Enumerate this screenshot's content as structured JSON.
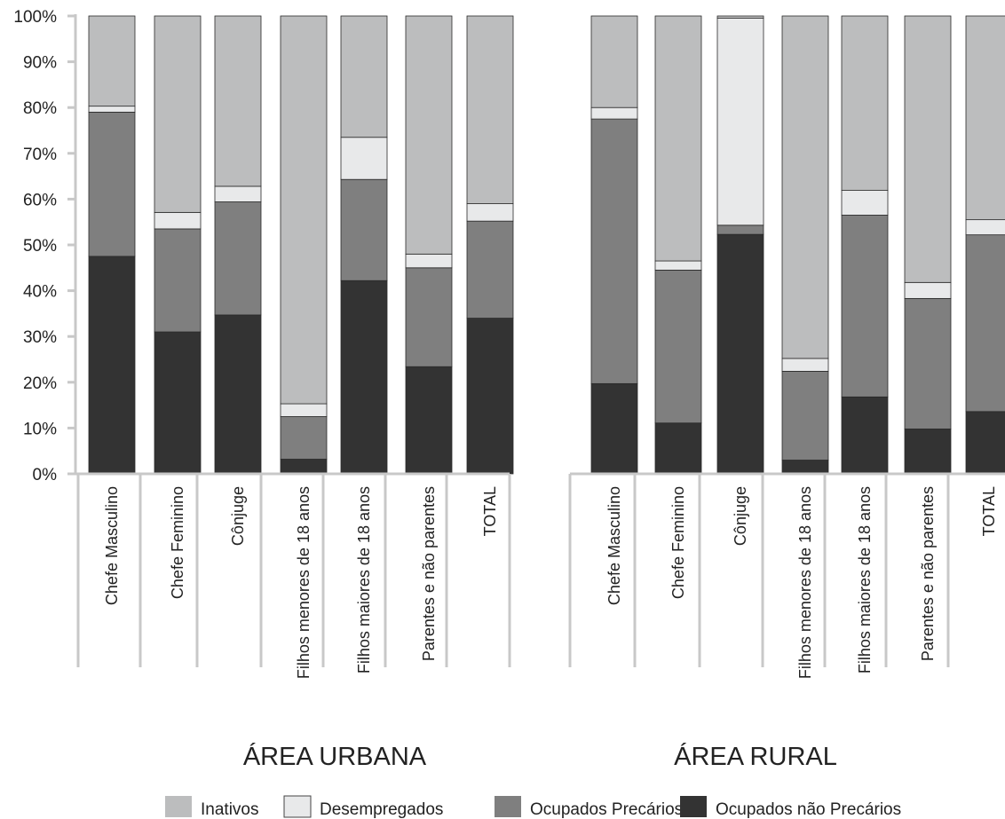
{
  "chart_data": {
    "type": "bar",
    "stacked": true,
    "percent_scale": true,
    "ylim": [
      0,
      100
    ],
    "yticks": [
      "0%",
      "10%",
      "20%",
      "30%",
      "40%",
      "50%",
      "60%",
      "70%",
      "80%",
      "90%",
      "100%"
    ],
    "colors": {
      "Ocupados não Precários": "#333333",
      "Ocupados Precários": "#7f7f7f",
      "Desempregados": "#e8e9ea",
      "Inativos": "#bcbdbe"
    },
    "legend": {
      "position": "bottom",
      "entries": [
        "Inativos",
        "Desempregados",
        "Ocupados Precários",
        "Ocupados não Precários"
      ]
    },
    "groups": [
      {
        "label": "ÁREA URBANA",
        "categories": [
          "Chefe Masculino",
          "Chefe Feminino",
          "Cônjuge",
          "Filhos menores de 18 anos",
          "Filhos maiores de 18 anos",
          "Parentes e não parentes",
          "TOTAL"
        ],
        "series": [
          {
            "name": "Ocupados não Precários",
            "values": [
              47.5,
              31,
              34.7,
              3.2,
              42.2,
              23.4,
              34
            ]
          },
          {
            "name": "Ocupados Precários",
            "values": [
              31.5,
              22.5,
              24.7,
              9.3,
              22.1,
              21.6,
              21.2
            ]
          },
          {
            "name": "Desempregados",
            "values": [
              1.3,
              3.6,
              3.4,
              2.8,
              9.2,
              3,
              3.8
            ]
          },
          {
            "name": "Inativos",
            "values": [
              19.7,
              42.9,
              37.2,
              84.7,
              26.5,
              52,
              41
            ]
          }
        ]
      },
      {
        "label": "ÁREA RURAL",
        "categories": [
          "Chefe Masculino",
          "Chefe Feminino",
          "Cônjuge",
          "Filhos menores de 18 anos",
          "Filhos maiores de 18 anos",
          "Parentes e não parentes",
          "TOTAL"
        ],
        "series": [
          {
            "name": "Ocupados não Precários",
            "values": [
              19.7,
              11.1,
              52.3,
              3,
              16.8,
              9.8,
              13.6
            ]
          },
          {
            "name": "Ocupados Precários",
            "values": [
              57.8,
              33.4,
              2,
              19.4,
              39.7,
              28.5,
              38.6
            ]
          },
          {
            "name": "Desempregados",
            "values": [
              2.5,
              2,
              45.2,
              2.8,
              5.4,
              3.5,
              3.3
            ]
          },
          {
            "name": "Inativos",
            "values": [
              20,
              53.5,
              0.5,
              74.8,
              38.1,
              58.2,
              44.5
            ]
          }
        ]
      }
    ]
  }
}
